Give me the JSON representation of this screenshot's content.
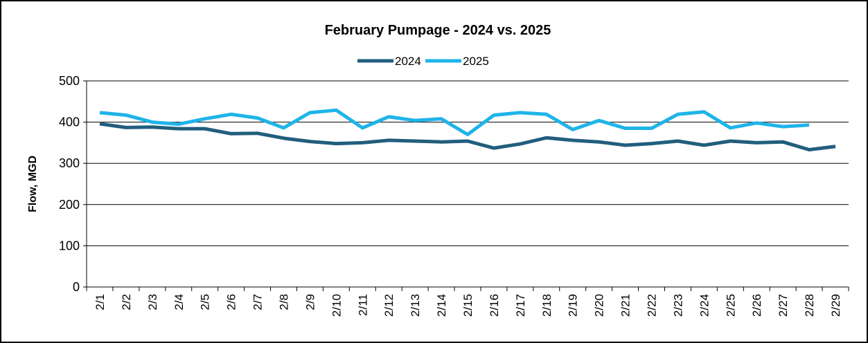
{
  "chart_data": {
    "type": "line",
    "title": "February Pumpage - 2024 vs. 2025",
    "ylabel": "Flow, MGD",
    "categories": [
      "2/1",
      "2/2",
      "2/3",
      "2/4",
      "2/5",
      "2/6",
      "2/7",
      "2/8",
      "2/9",
      "2/10",
      "2/11",
      "2/12",
      "2/13",
      "2/14",
      "2/15",
      "2/16",
      "2/17",
      "2/18",
      "2/19",
      "2/20",
      "2/21",
      "2/22",
      "2/23",
      "2/24",
      "2/25",
      "2/26",
      "2/27",
      "2/28",
      "2/29"
    ],
    "series": [
      {
        "name": "2024",
        "color": "#215e7d",
        "values": [
          396,
          387,
          388,
          384,
          384,
          372,
          373,
          361,
          353,
          348,
          350,
          356,
          354,
          352,
          354,
          337,
          347,
          362,
          356,
          352,
          344,
          348,
          354,
          344,
          354,
          350,
          352,
          333,
          341
        ]
      },
      {
        "name": "2025",
        "color": "#1fb4e9",
        "values": [
          423,
          417,
          400,
          395,
          408,
          419,
          410,
          386,
          423,
          429,
          386,
          413,
          404,
          408,
          370,
          417,
          423,
          419,
          382,
          404,
          385,
          385,
          419,
          425,
          386,
          398,
          389,
          393,
          null
        ]
      }
    ],
    "ylim": [
      0,
      500
    ],
    "yticks": [
      0,
      100,
      200,
      300,
      400,
      500
    ],
    "grid": true,
    "legend": "top"
  }
}
